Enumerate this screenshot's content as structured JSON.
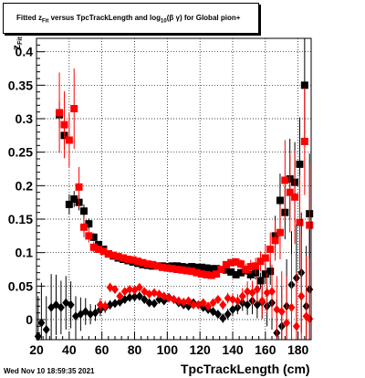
{
  "header": {
    "title_prefix": "Fitted  z",
    "title_sub": "Fit",
    "title_mid": "  versus TpcTrackLength and log",
    "title_sub2": "10",
    "title_suffix": "(β  γ) for Global pion+"
  },
  "footer": {
    "timestamp": "Wed Nov 10 18:59:35 2021"
  },
  "colors": {
    "black_series": "#000000",
    "red_series": "#ff0000"
  },
  "chart_data": {
    "type": "scatter",
    "title": "Fitted z_Fit versus TpcTrackLength and log10(β γ) for Global pion+",
    "xlabel": "TpcTrackLength (cm)",
    "ylabel": "z_Fit",
    "xlim": [
      20,
      188
    ],
    "ylim": [
      -0.03,
      0.42
    ],
    "x_ticks": [
      20,
      40,
      60,
      80,
      100,
      120,
      140,
      160,
      180
    ],
    "y_ticks": [
      0,
      0.05,
      0.1,
      0.15,
      0.2,
      0.25,
      0.3,
      0.35,
      0.4
    ],
    "x_tick_labels": [
      "20",
      "40",
      "60",
      "80",
      "100",
      "120",
      "140",
      "160",
      "180"
    ],
    "y_tick_labels": [
      "0",
      "0.05",
      "0.1",
      "0.15",
      "0.2",
      "0.25",
      "0.3",
      "0.35",
      "0.4"
    ],
    "grid": true,
    "series": [
      {
        "marker": "square",
        "color": "#000000",
        "points": [
          [
            34,
            0.306,
            0.02
          ],
          [
            37,
            0.275,
            0.02
          ],
          [
            40,
            0.172,
            0.015
          ],
          [
            43,
            0.18,
            0.012
          ],
          [
            46,
            0.175,
            0.012
          ],
          [
            49,
            0.162,
            0.01
          ],
          [
            52,
            0.143,
            0.008
          ],
          [
            55,
            0.123,
            0.006
          ],
          [
            58,
            0.112,
            0.005
          ],
          [
            61,
            0.105,
            0.004
          ],
          [
            64,
            0.098,
            0.004
          ],
          [
            67,
            0.095,
            0.003
          ],
          [
            70,
            0.092,
            0.003
          ],
          [
            73,
            0.09,
            0.003
          ],
          [
            76,
            0.088,
            0.003
          ],
          [
            79,
            0.086,
            0.003
          ],
          [
            82,
            0.084,
            0.003
          ],
          [
            85,
            0.082,
            0.003
          ],
          [
            88,
            0.081,
            0.003
          ],
          [
            91,
            0.08,
            0.003
          ],
          [
            94,
            0.08,
            0.003
          ],
          [
            97,
            0.08,
            0.003
          ],
          [
            100,
            0.079,
            0.003
          ],
          [
            103,
            0.08,
            0.003
          ],
          [
            106,
            0.08,
            0.003
          ],
          [
            109,
            0.079,
            0.003
          ],
          [
            112,
            0.078,
            0.003
          ],
          [
            115,
            0.079,
            0.003
          ],
          [
            118,
            0.078,
            0.003
          ],
          [
            121,
            0.078,
            0.003
          ],
          [
            124,
            0.077,
            0.003
          ],
          [
            127,
            0.076,
            0.003
          ],
          [
            130,
            0.076,
            0.003
          ],
          [
            133,
            0.075,
            0.004
          ],
          [
            136,
            0.074,
            0.004
          ],
          [
            139,
            0.071,
            0.004
          ],
          [
            142,
            0.067,
            0.005
          ],
          [
            145,
            0.07,
            0.005
          ],
          [
            148,
            0.073,
            0.006
          ],
          [
            151,
            0.067,
            0.008
          ],
          [
            154,
            0.07,
            0.01
          ],
          [
            157,
            0.058,
            0.012
          ],
          [
            160,
            0.068,
            0.015
          ],
          [
            163,
            0.072,
            0.02
          ],
          [
            166,
            0.125,
            0.03
          ],
          [
            169,
            0.178,
            0.04
          ],
          [
            172,
            0.16,
            0.04
          ],
          [
            175,
            0.21,
            0.06
          ],
          [
            178,
            0.205,
            0.06
          ],
          [
            181,
            0.232,
            0.07
          ],
          [
            184,
            0.35,
            0.08
          ],
          [
            187,
            0.158,
            0.09
          ]
        ]
      },
      {
        "marker": "square",
        "color": "#ff0000",
        "points": [
          [
            34,
            0.309,
            0.06
          ],
          [
            37,
            0.291,
            0.05
          ],
          [
            40,
            0.268,
            0.04
          ],
          [
            43,
            0.315,
            0.06
          ],
          [
            46,
            0.198,
            0.03
          ],
          [
            49,
            0.138,
            0.015
          ],
          [
            52,
            0.125,
            0.01
          ],
          [
            55,
            0.108,
            0.008
          ],
          [
            58,
            0.105,
            0.005
          ],
          [
            61,
            0.102,
            0.004
          ],
          [
            64,
            0.098,
            0.004
          ],
          [
            67,
            0.096,
            0.003
          ],
          [
            70,
            0.094,
            0.003
          ],
          [
            73,
            0.092,
            0.003
          ],
          [
            76,
            0.09,
            0.003
          ],
          [
            79,
            0.089,
            0.003
          ],
          [
            82,
            0.087,
            0.003
          ],
          [
            85,
            0.085,
            0.003
          ],
          [
            88,
            0.083,
            0.003
          ],
          [
            91,
            0.082,
            0.003
          ],
          [
            94,
            0.08,
            0.003
          ],
          [
            97,
            0.078,
            0.003
          ],
          [
            100,
            0.077,
            0.003
          ],
          [
            103,
            0.076,
            0.003
          ],
          [
            106,
            0.075,
            0.003
          ],
          [
            109,
            0.074,
            0.003
          ],
          [
            112,
            0.073,
            0.003
          ],
          [
            115,
            0.072,
            0.003
          ],
          [
            118,
            0.07,
            0.003
          ],
          [
            121,
            0.068,
            0.003
          ],
          [
            124,
            0.067,
            0.003
          ],
          [
            127,
            0.066,
            0.003
          ],
          [
            130,
            0.068,
            0.004
          ],
          [
            133,
            0.075,
            0.004
          ],
          [
            136,
            0.082,
            0.005
          ],
          [
            139,
            0.085,
            0.005
          ],
          [
            142,
            0.086,
            0.006
          ],
          [
            145,
            0.083,
            0.007
          ],
          [
            148,
            0.075,
            0.008
          ],
          [
            151,
            0.079,
            0.01
          ],
          [
            154,
            0.08,
            0.012
          ],
          [
            157,
            0.087,
            0.015
          ],
          [
            160,
            0.092,
            0.02
          ],
          [
            163,
            0.105,
            0.025
          ],
          [
            166,
            0.118,
            0.03
          ],
          [
            169,
            0.13,
            0.04
          ],
          [
            172,
            0.208,
            0.06
          ],
          [
            175,
            0.19,
            0.06
          ],
          [
            178,
            0.183,
            0.07
          ],
          [
            181,
            0.145,
            0.07
          ],
          [
            184,
            0.266,
            0.08
          ],
          [
            187,
            0.141,
            0.09
          ]
        ]
      },
      {
        "marker": "diamond",
        "color": "#000000",
        "points": [
          [
            21,
            -0.025,
            0.06
          ],
          [
            23,
            -0.005,
            0.06
          ],
          [
            26,
            -0.015,
            0.05
          ],
          [
            29,
            0.018,
            0.05
          ],
          [
            32,
            0.022,
            0.045
          ],
          [
            35,
            0.018,
            0.04
          ],
          [
            38,
            0.025,
            0.04
          ],
          [
            41,
            0.022,
            0.035
          ],
          [
            44,
            0.005,
            0.03
          ],
          [
            47,
            0.008,
            0.025
          ],
          [
            50,
            0.012,
            0.02
          ],
          [
            53,
            0.008,
            0.015
          ],
          [
            56,
            0.01,
            0.012
          ],
          [
            59,
            0.015,
            0.01
          ],
          [
            62,
            0.018,
            0.008
          ],
          [
            65,
            0.022,
            0.007
          ],
          [
            68,
            0.024,
            0.006
          ],
          [
            71,
            0.026,
            0.005
          ],
          [
            74,
            0.03,
            0.005
          ],
          [
            77,
            0.033,
            0.005
          ],
          [
            80,
            0.034,
            0.005
          ],
          [
            83,
            0.035,
            0.005
          ],
          [
            86,
            0.03,
            0.004
          ],
          [
            89,
            0.025,
            0.004
          ],
          [
            92,
            0.024,
            0.004
          ],
          [
            95,
            0.03,
            0.004
          ],
          [
            98,
            0.028,
            0.004
          ],
          [
            101,
            0.033,
            0.004
          ],
          [
            104,
            0.03,
            0.004
          ],
          [
            107,
            0.025,
            0.004
          ],
          [
            110,
            0.022,
            0.004
          ],
          [
            113,
            0.02,
            0.004
          ],
          [
            116,
            0.025,
            0.004
          ],
          [
            119,
            0.022,
            0.005
          ],
          [
            122,
            0.018,
            0.005
          ],
          [
            125,
            0.015,
            0.005
          ],
          [
            128,
            0.012,
            0.006
          ],
          [
            131,
            0.008,
            0.006
          ],
          [
            134,
            0.002,
            0.007
          ],
          [
            137,
            0.008,
            0.008
          ],
          [
            140,
            0.015,
            0.01
          ],
          [
            143,
            0.018,
            0.01
          ],
          [
            146,
            0.025,
            0.012
          ],
          [
            149,
            0.022,
            0.015
          ],
          [
            152,
            0.028,
            0.02
          ],
          [
            155,
            0.022,
            0.02
          ],
          [
            158,
            0.026,
            0.025
          ],
          [
            161,
            0.02,
            0.03
          ],
          [
            164,
            0.025,
            0.04
          ],
          [
            167,
            -0.02,
            0.05
          ],
          [
            170,
            -0.01,
            0.06
          ],
          [
            173,
            0.02,
            0.07
          ],
          [
            176,
            0.052,
            0.08
          ],
          [
            179,
            0.062,
            0.08
          ],
          [
            182,
            0.07,
            0.09
          ],
          [
            185,
            0.02,
            0.09
          ],
          [
            187,
            0.045,
            0.09
          ]
        ]
      },
      {
        "marker": "diamond",
        "color": "#ff0000",
        "points": [
          [
            59,
            0.022,
            0.01
          ],
          [
            62,
            0.02,
            0.008
          ],
          [
            65,
            0.048,
            0.007
          ],
          [
            68,
            0.045,
            0.006
          ],
          [
            71,
            0.035,
            0.005
          ],
          [
            74,
            0.042,
            0.005
          ],
          [
            77,
            0.045,
            0.005
          ],
          [
            80,
            0.044,
            0.005
          ],
          [
            83,
            0.048,
            0.005
          ],
          [
            86,
            0.042,
            0.004
          ],
          [
            89,
            0.038,
            0.004
          ],
          [
            92,
            0.04,
            0.004
          ],
          [
            95,
            0.038,
            0.004
          ],
          [
            98,
            0.035,
            0.004
          ],
          [
            101,
            0.032,
            0.004
          ],
          [
            104,
            0.03,
            0.004
          ],
          [
            107,
            0.028,
            0.004
          ],
          [
            110,
            0.026,
            0.004
          ],
          [
            113,
            0.028,
            0.004
          ],
          [
            116,
            0.022,
            0.005
          ],
          [
            119,
            0.022,
            0.005
          ],
          [
            122,
            0.025,
            0.005
          ],
          [
            125,
            0.02,
            0.005
          ],
          [
            128,
            0.025,
            0.006
          ],
          [
            131,
            0.03,
            0.006
          ],
          [
            134,
            0.022,
            0.007
          ],
          [
            137,
            0.032,
            0.008
          ],
          [
            140,
            0.03,
            0.009
          ],
          [
            143,
            0.028,
            0.01
          ],
          [
            146,
            0.035,
            0.012
          ],
          [
            149,
            0.042,
            0.015
          ],
          [
            152,
            0.04,
            0.018
          ],
          [
            155,
            0.045,
            0.02
          ],
          [
            158,
            0.028,
            0.025
          ],
          [
            161,
            0.04,
            0.03
          ],
          [
            164,
            0.042,
            0.04
          ],
          [
            167,
            0.015,
            0.05
          ],
          [
            170,
            0.012,
            0.06
          ],
          [
            173,
            -0.005,
            0.07
          ],
          [
            176,
            0.018,
            0.08
          ],
          [
            179,
            -0.01,
            0.08
          ],
          [
            182,
            0.035,
            0.09
          ],
          [
            185,
            0.005,
            0.09
          ],
          [
            187,
            0.001,
            0.09
          ]
        ]
      }
    ]
  }
}
